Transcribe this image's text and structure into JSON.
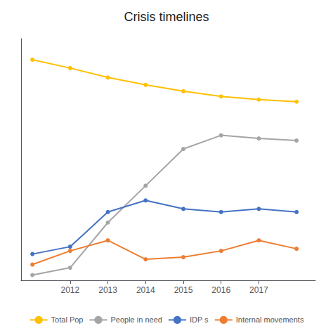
{
  "chart_data": {
    "type": "line",
    "title": "Crisis timelines",
    "x": [
      2011,
      2012,
      2013,
      2014,
      2015,
      2016,
      2017,
      2018
    ],
    "series": [
      {
        "name": "Total Pop",
        "color": "#FFC000",
        "values": [
          21.0,
          20.2,
          19.3,
          18.6,
          18.0,
          17.5,
          17.2,
          17.0
        ]
      },
      {
        "name": "People in need",
        "color": "#A5A5A5",
        "values": [
          0.5,
          1.2,
          5.5,
          9.0,
          12.5,
          13.8,
          13.5,
          13.3
        ]
      },
      {
        "name": "IDP s",
        "color": "#4472C4",
        "values": [
          2.5,
          3.2,
          6.5,
          7.6,
          6.8,
          6.5,
          6.8,
          6.5
        ]
      },
      {
        "name": "Internal movements",
        "color": "#ED7D31",
        "values": [
          1.5,
          2.8,
          3.8,
          2.0,
          2.2,
          2.8,
          3.8,
          3.0
        ]
      }
    ],
    "xlim": [
      2010.7,
      2018.5
    ],
    "xticks": [
      2012,
      2013,
      2014,
      2015,
      2016,
      2017
    ],
    "ylim": [
      0,
      23
    ],
    "yticks": [],
    "grid": false,
    "legend": "bottom",
    "tick_labels": "x",
    "marker": "circle"
  }
}
